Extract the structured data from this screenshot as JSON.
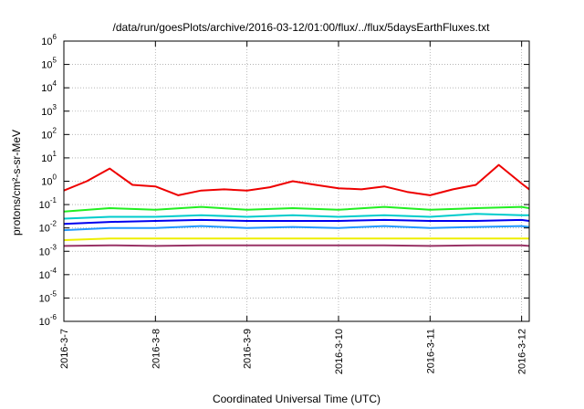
{
  "chart_data": {
    "type": "line",
    "title": "/data/run/goesPlots/archive/2016-03-12/01:00/flux/../flux/5daysEarthFluxes.txt",
    "xlabel": "Coordinated Universal Time (UTC)",
    "ylabel": "protons/cm²-s-sr-MeV",
    "yscale": "log",
    "ylim": [
      1e-06,
      1000000.0
    ],
    "xlim": [
      "2016-03-07",
      "2016-03-12 02:00"
    ],
    "grid": true,
    "legend": "none",
    "x_ticks": [
      "2016-3-7",
      "2016-3-8",
      "2016-3-9",
      "2016-3-10",
      "2016-3-11",
      "2016-3-12"
    ],
    "y_ticks": [
      {
        "base": "10",
        "exp": "-6"
      },
      {
        "base": "10",
        "exp": "-5"
      },
      {
        "base": "10",
        "exp": "-4"
      },
      {
        "base": "10",
        "exp": "-3"
      },
      {
        "base": "10",
        "exp": "-2"
      },
      {
        "base": "10",
        "exp": "-1"
      },
      {
        "base": "10",
        "exp": "0"
      },
      {
        "base": "10",
        "exp": "1"
      },
      {
        "base": "10",
        "exp": "2"
      },
      {
        "base": "10",
        "exp": "3"
      },
      {
        "base": "10",
        "exp": "4"
      },
      {
        "base": "10",
        "exp": "5"
      },
      {
        "base": "10",
        "exp": "6"
      }
    ],
    "series": [
      {
        "color": "#ee0000",
        "x": [
          "2016-03-07 00:00",
          "2016-03-07 06:00",
          "2016-03-07 12:00",
          "2016-03-07 18:00",
          "2016-03-08 00:00",
          "2016-03-08 06:00",
          "2016-03-08 12:00",
          "2016-03-08 18:00",
          "2016-03-09 00:00",
          "2016-03-09 06:00",
          "2016-03-09 12:00",
          "2016-03-09 18:00",
          "2016-03-10 00:00",
          "2016-03-10 06:00",
          "2016-03-10 12:00",
          "2016-03-10 18:00",
          "2016-03-11 00:00",
          "2016-03-11 06:00",
          "2016-03-11 12:00",
          "2016-03-11 18:00",
          "2016-03-12 00:00",
          "2016-03-12 02:00"
        ],
        "values": [
          0.4,
          1.0,
          3.5,
          0.7,
          0.6,
          0.25,
          0.4,
          0.45,
          0.4,
          0.55,
          1.0,
          0.7,
          0.5,
          0.45,
          0.6,
          0.35,
          0.25,
          0.45,
          0.7,
          5.0,
          0.8,
          0.45
        ]
      },
      {
        "color": "#22ee22",
        "x": [
          "2016-03-07 00:00",
          "2016-03-07 12:00",
          "2016-03-08 00:00",
          "2016-03-08 12:00",
          "2016-03-09 00:00",
          "2016-03-09 12:00",
          "2016-03-10 00:00",
          "2016-03-10 12:00",
          "2016-03-11 00:00",
          "2016-03-11 12:00",
          "2016-03-12 00:00",
          "2016-03-12 02:00"
        ],
        "values": [
          0.05,
          0.07,
          0.06,
          0.08,
          0.06,
          0.07,
          0.06,
          0.08,
          0.06,
          0.07,
          0.08,
          0.07
        ]
      },
      {
        "color": "#00cccc",
        "x": [
          "2016-03-07 00:00",
          "2016-03-07 12:00",
          "2016-03-08 00:00",
          "2016-03-08 12:00",
          "2016-03-09 00:00",
          "2016-03-09 12:00",
          "2016-03-10 00:00",
          "2016-03-10 12:00",
          "2016-03-11 00:00",
          "2016-03-11 12:00",
          "2016-03-12 00:00",
          "2016-03-12 02:00"
        ],
        "values": [
          0.025,
          0.03,
          0.03,
          0.035,
          0.03,
          0.035,
          0.03,
          0.035,
          0.03,
          0.04,
          0.035,
          0.035
        ]
      },
      {
        "color": "#0000ee",
        "x": [
          "2016-03-07 00:00",
          "2016-03-07 12:00",
          "2016-03-08 00:00",
          "2016-03-08 12:00",
          "2016-03-09 00:00",
          "2016-03-09 12:00",
          "2016-03-10 00:00",
          "2016-03-10 12:00",
          "2016-03-11 00:00",
          "2016-03-11 12:00",
          "2016-03-12 00:00",
          "2016-03-12 02:00"
        ],
        "values": [
          0.015,
          0.018,
          0.02,
          0.022,
          0.02,
          0.02,
          0.02,
          0.022,
          0.02,
          0.02,
          0.022,
          0.02
        ]
      },
      {
        "color": "#2299ff",
        "x": [
          "2016-03-07 00:00",
          "2016-03-07 12:00",
          "2016-03-08 00:00",
          "2016-03-08 12:00",
          "2016-03-09 00:00",
          "2016-03-09 12:00",
          "2016-03-10 00:00",
          "2016-03-10 12:00",
          "2016-03-11 00:00",
          "2016-03-11 12:00",
          "2016-03-12 00:00",
          "2016-03-12 02:00"
        ],
        "values": [
          0.008,
          0.01,
          0.01,
          0.012,
          0.01,
          0.011,
          0.01,
          0.012,
          0.01,
          0.011,
          0.012,
          0.011
        ]
      },
      {
        "color": "#eeee00",
        "x": [
          "2016-03-07 00:00",
          "2016-03-07 12:00",
          "2016-03-08 00:00",
          "2016-03-08 12:00",
          "2016-03-09 00:00",
          "2016-03-09 12:00",
          "2016-03-10 00:00",
          "2016-03-10 12:00",
          "2016-03-11 00:00",
          "2016-03-11 12:00",
          "2016-03-12 00:00",
          "2016-03-12 02:00"
        ],
        "values": [
          0.003,
          0.0035,
          0.0035,
          0.0035,
          0.0035,
          0.0035,
          0.0035,
          0.0035,
          0.0035,
          0.0035,
          0.0035,
          0.0035
        ]
      },
      {
        "color": "#993366",
        "x": [
          "2016-03-07 00:00",
          "2016-03-07 12:00",
          "2016-03-08 00:00",
          "2016-03-08 12:00",
          "2016-03-09 00:00",
          "2016-03-09 12:00",
          "2016-03-10 00:00",
          "2016-03-10 12:00",
          "2016-03-11 00:00",
          "2016-03-11 12:00",
          "2016-03-12 00:00",
          "2016-03-12 02:00"
        ],
        "values": [
          0.0017,
          0.0018,
          0.0017,
          0.0018,
          0.0018,
          0.0018,
          0.0018,
          0.0018,
          0.0017,
          0.0018,
          0.0018,
          0.0017
        ]
      }
    ]
  }
}
